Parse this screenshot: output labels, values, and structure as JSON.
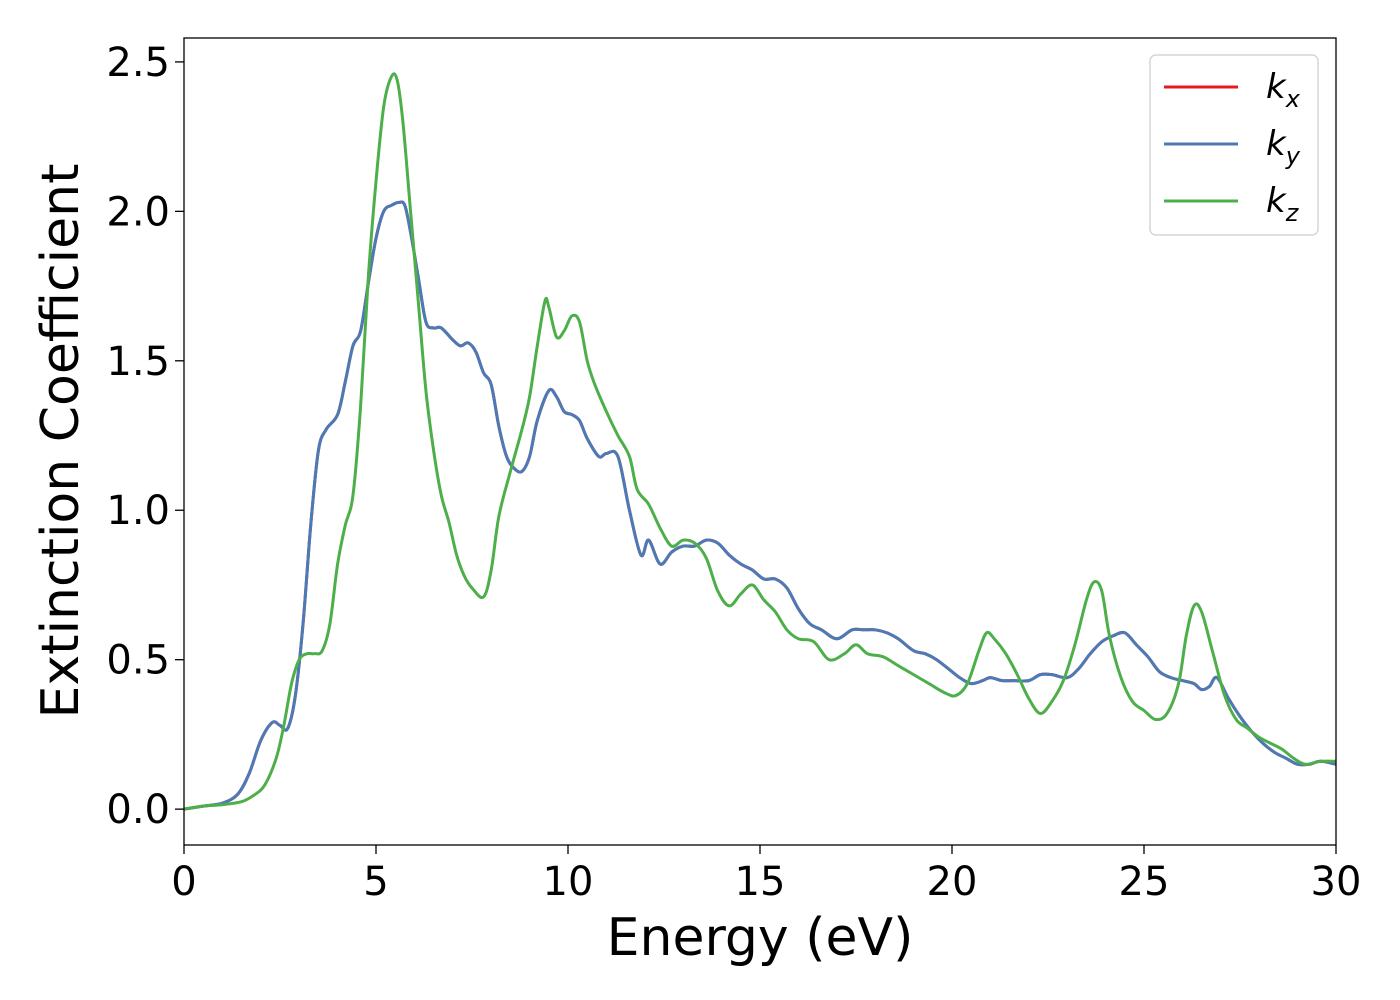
{
  "chart_data": {
    "type": "line",
    "title": "",
    "xlabel": "Energy (eV)",
    "ylabel": "Extinction Coefficient",
    "xlim": [
      0,
      30
    ],
    "ylim": [
      -0.12,
      2.58
    ],
    "xticks": [
      0,
      5,
      10,
      15,
      20,
      25,
      30
    ],
    "xtick_labels": [
      "0",
      "5",
      "10",
      "15",
      "20",
      "25",
      "30"
    ],
    "yticks": [
      0.0,
      0.5,
      1.0,
      1.5,
      2.0,
      2.5
    ],
    "ytick_labels": [
      "0.0",
      "0.5",
      "1.0",
      "1.5",
      "2.0",
      "2.5"
    ],
    "grid": false,
    "legend_position": "top-right",
    "series": [
      {
        "name": "k_x",
        "label_base": "k",
        "label_sub": "x",
        "color": "#e41a1c",
        "x": [
          0,
          0.5,
          1.0,
          1.4,
          1.7,
          2.0,
          2.3,
          2.5,
          2.7,
          2.9,
          3.1,
          3.3,
          3.5,
          3.7,
          4.0,
          4.2,
          4.4,
          4.6,
          4.8,
          5.0,
          5.2,
          5.4,
          5.6,
          5.75,
          5.9,
          6.1,
          6.3,
          6.5,
          6.7,
          7.0,
          7.2,
          7.4,
          7.6,
          7.8,
          8.0,
          8.2,
          8.4,
          8.6,
          8.8,
          9.0,
          9.2,
          9.5,
          9.7,
          9.9,
          10.1,
          10.3,
          10.5,
          10.8,
          11.0,
          11.3,
          11.6,
          11.9,
          12.1,
          12.4,
          12.7,
          13.0,
          13.3,
          13.6,
          13.9,
          14.2,
          14.5,
          14.8,
          15.1,
          15.4,
          15.7,
          16.0,
          16.3,
          16.6,
          17.0,
          17.4,
          17.7,
          18.0,
          18.3,
          18.6,
          19.0,
          19.3,
          19.6,
          20.0,
          20.2,
          20.5,
          20.8,
          21.0,
          21.3,
          21.6,
          22.0,
          22.3,
          22.6,
          23.0,
          23.3,
          23.6,
          23.9,
          24.2,
          24.5,
          24.8,
          25.1,
          25.4,
          25.7,
          26.0,
          26.3,
          26.5,
          26.7,
          26.9,
          27.2,
          27.5,
          27.8,
          28.1,
          28.4,
          28.7,
          29.0,
          29.3,
          29.6,
          30.0
        ],
        "y": [
          0.0,
          0.01,
          0.02,
          0.05,
          0.12,
          0.23,
          0.29,
          0.28,
          0.27,
          0.38,
          0.62,
          0.95,
          1.2,
          1.27,
          1.32,
          1.43,
          1.55,
          1.6,
          1.76,
          1.91,
          2.0,
          2.02,
          2.03,
          2.02,
          1.93,
          1.78,
          1.63,
          1.61,
          1.61,
          1.57,
          1.55,
          1.56,
          1.53,
          1.46,
          1.42,
          1.28,
          1.18,
          1.14,
          1.13,
          1.18,
          1.3,
          1.4,
          1.38,
          1.33,
          1.32,
          1.3,
          1.24,
          1.18,
          1.19,
          1.18,
          1.0,
          0.85,
          0.9,
          0.82,
          0.86,
          0.88,
          0.88,
          0.9,
          0.89,
          0.85,
          0.82,
          0.8,
          0.77,
          0.77,
          0.74,
          0.67,
          0.62,
          0.6,
          0.57,
          0.6,
          0.6,
          0.6,
          0.59,
          0.57,
          0.53,
          0.52,
          0.5,
          0.46,
          0.44,
          0.42,
          0.43,
          0.44,
          0.43,
          0.43,
          0.43,
          0.45,
          0.45,
          0.44,
          0.47,
          0.52,
          0.56,
          0.58,
          0.59,
          0.55,
          0.51,
          0.46,
          0.44,
          0.43,
          0.42,
          0.4,
          0.41,
          0.44,
          0.37,
          0.31,
          0.26,
          0.22,
          0.19,
          0.17,
          0.15,
          0.15,
          0.16,
          0.15
        ]
      },
      {
        "name": "k_y",
        "label_base": "k",
        "label_sub": "y",
        "color": "#4a7bb7",
        "x": [
          0,
          0.5,
          1.0,
          1.4,
          1.7,
          2.0,
          2.3,
          2.5,
          2.7,
          2.9,
          3.1,
          3.3,
          3.5,
          3.7,
          4.0,
          4.2,
          4.4,
          4.6,
          4.8,
          5.0,
          5.2,
          5.4,
          5.6,
          5.75,
          5.9,
          6.1,
          6.3,
          6.5,
          6.7,
          7.0,
          7.2,
          7.4,
          7.6,
          7.8,
          8.0,
          8.2,
          8.4,
          8.6,
          8.8,
          9.0,
          9.2,
          9.5,
          9.7,
          9.9,
          10.1,
          10.3,
          10.5,
          10.8,
          11.0,
          11.3,
          11.6,
          11.9,
          12.1,
          12.4,
          12.7,
          13.0,
          13.3,
          13.6,
          13.9,
          14.2,
          14.5,
          14.8,
          15.1,
          15.4,
          15.7,
          16.0,
          16.3,
          16.6,
          17.0,
          17.4,
          17.7,
          18.0,
          18.3,
          18.6,
          19.0,
          19.3,
          19.6,
          20.0,
          20.2,
          20.5,
          20.8,
          21.0,
          21.3,
          21.6,
          22.0,
          22.3,
          22.6,
          23.0,
          23.3,
          23.6,
          23.9,
          24.2,
          24.5,
          24.8,
          25.1,
          25.4,
          25.7,
          26.0,
          26.3,
          26.5,
          26.7,
          26.9,
          27.2,
          27.5,
          27.8,
          28.1,
          28.4,
          28.7,
          29.0,
          29.3,
          29.6,
          30.0
        ],
        "y": [
          0.0,
          0.01,
          0.02,
          0.05,
          0.12,
          0.23,
          0.29,
          0.28,
          0.27,
          0.38,
          0.62,
          0.95,
          1.2,
          1.27,
          1.32,
          1.43,
          1.55,
          1.6,
          1.76,
          1.91,
          2.0,
          2.02,
          2.03,
          2.02,
          1.93,
          1.78,
          1.63,
          1.61,
          1.61,
          1.57,
          1.55,
          1.56,
          1.53,
          1.46,
          1.42,
          1.28,
          1.18,
          1.14,
          1.13,
          1.18,
          1.3,
          1.4,
          1.38,
          1.33,
          1.32,
          1.3,
          1.24,
          1.18,
          1.19,
          1.18,
          1.0,
          0.85,
          0.9,
          0.82,
          0.86,
          0.88,
          0.88,
          0.9,
          0.89,
          0.85,
          0.82,
          0.8,
          0.77,
          0.77,
          0.74,
          0.67,
          0.62,
          0.6,
          0.57,
          0.6,
          0.6,
          0.6,
          0.59,
          0.57,
          0.53,
          0.52,
          0.5,
          0.46,
          0.44,
          0.42,
          0.43,
          0.44,
          0.43,
          0.43,
          0.43,
          0.45,
          0.45,
          0.44,
          0.47,
          0.52,
          0.56,
          0.58,
          0.59,
          0.55,
          0.51,
          0.46,
          0.44,
          0.43,
          0.42,
          0.4,
          0.41,
          0.44,
          0.37,
          0.31,
          0.26,
          0.22,
          0.19,
          0.17,
          0.15,
          0.15,
          0.16,
          0.15
        ]
      },
      {
        "name": "k_z",
        "label_base": "k",
        "label_sub": "z",
        "color": "#4daf4a",
        "x": [
          0,
          0.5,
          1.0,
          1.5,
          1.8,
          2.1,
          2.4,
          2.6,
          2.8,
          3.0,
          3.2,
          3.4,
          3.6,
          3.8,
          4.0,
          4.2,
          4.4,
          4.6,
          4.8,
          5.0,
          5.2,
          5.4,
          5.55,
          5.7,
          5.9,
          6.1,
          6.3,
          6.5,
          6.7,
          6.9,
          7.1,
          7.3,
          7.5,
          7.8,
          8.0,
          8.2,
          8.5,
          8.8,
          9.0,
          9.2,
          9.4,
          9.5,
          9.7,
          9.9,
          10.1,
          10.3,
          10.5,
          10.7,
          11.0,
          11.3,
          11.6,
          11.8,
          12.1,
          12.4,
          12.7,
          13.0,
          13.3,
          13.6,
          13.9,
          14.2,
          14.5,
          14.8,
          15.1,
          15.4,
          15.7,
          16.0,
          16.4,
          16.8,
          17.2,
          17.5,
          17.8,
          18.2,
          18.6,
          19.0,
          19.4,
          19.8,
          20.1,
          20.4,
          20.7,
          20.9,
          21.1,
          21.4,
          21.7,
          22.0,
          22.3,
          22.6,
          22.9,
          23.2,
          23.5,
          23.7,
          23.9,
          24.1,
          24.4,
          24.7,
          25.0,
          25.3,
          25.6,
          25.9,
          26.1,
          26.3,
          26.5,
          26.8,
          27.1,
          27.4,
          27.7,
          28.0,
          28.3,
          28.6,
          28.9,
          29.2,
          29.6,
          30.0
        ],
        "y": [
          0.0,
          0.01,
          0.015,
          0.025,
          0.045,
          0.08,
          0.17,
          0.28,
          0.42,
          0.5,
          0.52,
          0.52,
          0.53,
          0.62,
          0.82,
          0.95,
          1.05,
          1.35,
          1.78,
          2.1,
          2.35,
          2.45,
          2.44,
          2.3,
          2.0,
          1.7,
          1.4,
          1.2,
          1.05,
          0.96,
          0.85,
          0.78,
          0.74,
          0.71,
          0.8,
          0.98,
          1.13,
          1.27,
          1.38,
          1.55,
          1.7,
          1.68,
          1.58,
          1.6,
          1.65,
          1.63,
          1.5,
          1.42,
          1.33,
          1.25,
          1.18,
          1.07,
          1.02,
          0.94,
          0.88,
          0.9,
          0.89,
          0.84,
          0.73,
          0.68,
          0.72,
          0.75,
          0.7,
          0.66,
          0.6,
          0.57,
          0.56,
          0.5,
          0.52,
          0.55,
          0.52,
          0.51,
          0.48,
          0.45,
          0.42,
          0.39,
          0.38,
          0.42,
          0.53,
          0.59,
          0.57,
          0.52,
          0.45,
          0.37,
          0.32,
          0.36,
          0.43,
          0.55,
          0.7,
          0.76,
          0.73,
          0.58,
          0.44,
          0.36,
          0.33,
          0.3,
          0.32,
          0.42,
          0.58,
          0.68,
          0.66,
          0.52,
          0.38,
          0.3,
          0.27,
          0.24,
          0.22,
          0.2,
          0.17,
          0.15,
          0.16,
          0.16
        ]
      }
    ]
  }
}
